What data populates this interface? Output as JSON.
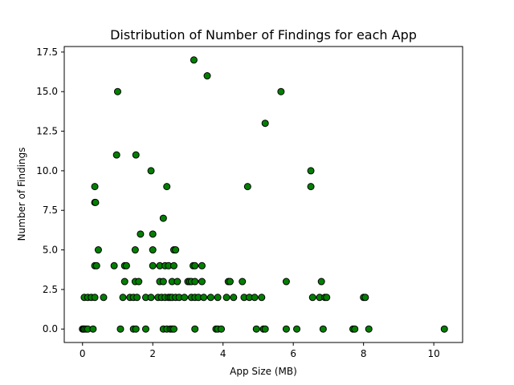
{
  "chart_data": {
    "type": "scatter",
    "title": "Distribution of Number of Findings for each App",
    "xlabel": "App Size (MB)",
    "ylabel": "Number of Findings",
    "xlim": [
      -0.52,
      10.82
    ],
    "ylim": [
      -0.85,
      17.85
    ],
    "xticks": [
      0,
      2,
      4,
      6,
      8,
      10
    ],
    "xtick_labels": [
      "0",
      "2",
      "4",
      "6",
      "8",
      "10"
    ],
    "yticks": [
      0,
      2.5,
      5,
      7.5,
      10,
      12.5,
      15,
      17.5
    ],
    "ytick_labels": [
      "0.0",
      "2.5",
      "5.0",
      "7.5",
      "10.0",
      "12.5",
      "15.0",
      "17.5"
    ],
    "grid": false,
    "marker_color": "#008000",
    "marker_edge_color": "#000000",
    "points": [
      [
        0.0,
        0
      ],
      [
        0.03,
        0
      ],
      [
        0.05,
        0
      ],
      [
        0.1,
        0
      ],
      [
        0.15,
        0
      ],
      [
        0.3,
        0
      ],
      [
        1.08,
        0
      ],
      [
        1.45,
        0
      ],
      [
        1.52,
        0
      ],
      [
        1.8,
        0
      ],
      [
        2.3,
        0
      ],
      [
        2.4,
        0
      ],
      [
        2.5,
        0
      ],
      [
        2.55,
        0
      ],
      [
        2.6,
        0
      ],
      [
        3.2,
        0
      ],
      [
        3.8,
        0
      ],
      [
        3.85,
        0
      ],
      [
        3.95,
        0
      ],
      [
        4.95,
        0
      ],
      [
        5.15,
        0
      ],
      [
        5.2,
        0
      ],
      [
        5.8,
        0
      ],
      [
        6.1,
        0
      ],
      [
        6.85,
        0
      ],
      [
        7.7,
        0
      ],
      [
        7.75,
        0
      ],
      [
        8.15,
        0
      ],
      [
        10.3,
        0
      ],
      [
        0.05,
        2
      ],
      [
        0.15,
        2
      ],
      [
        0.25,
        2
      ],
      [
        0.35,
        2
      ],
      [
        0.6,
        2
      ],
      [
        1.15,
        2
      ],
      [
        1.35,
        2
      ],
      [
        1.45,
        2
      ],
      [
        1.55,
        2
      ],
      [
        1.8,
        2
      ],
      [
        1.95,
        2
      ],
      [
        2.15,
        2
      ],
      [
        2.25,
        2
      ],
      [
        2.35,
        2
      ],
      [
        2.45,
        2
      ],
      [
        2.5,
        2
      ],
      [
        2.55,
        2
      ],
      [
        2.65,
        2
      ],
      [
        2.75,
        2
      ],
      [
        2.9,
        2
      ],
      [
        3.1,
        2
      ],
      [
        3.2,
        2
      ],
      [
        3.3,
        2
      ],
      [
        3.45,
        2
      ],
      [
        3.65,
        2
      ],
      [
        3.85,
        2
      ],
      [
        4.1,
        2
      ],
      [
        4.3,
        2
      ],
      [
        4.6,
        2
      ],
      [
        4.75,
        2
      ],
      [
        4.9,
        2
      ],
      [
        5.1,
        2
      ],
      [
        6.55,
        2
      ],
      [
        6.75,
        2
      ],
      [
        6.9,
        2
      ],
      [
        6.95,
        2
      ],
      [
        8.0,
        2
      ],
      [
        8.05,
        2
      ],
      [
        1.2,
        3
      ],
      [
        1.5,
        3
      ],
      [
        1.6,
        3
      ],
      [
        2.2,
        3
      ],
      [
        2.3,
        3
      ],
      [
        2.55,
        3
      ],
      [
        2.7,
        3
      ],
      [
        3.0,
        3
      ],
      [
        3.05,
        3
      ],
      [
        3.1,
        3
      ],
      [
        3.2,
        3
      ],
      [
        3.4,
        3
      ],
      [
        4.15,
        3
      ],
      [
        4.2,
        3
      ],
      [
        4.55,
        3
      ],
      [
        5.8,
        3
      ],
      [
        6.8,
        3
      ],
      [
        0.35,
        4
      ],
      [
        0.4,
        4
      ],
      [
        0.9,
        4
      ],
      [
        1.2,
        4
      ],
      [
        1.25,
        4
      ],
      [
        2.0,
        4
      ],
      [
        2.2,
        4
      ],
      [
        2.35,
        4
      ],
      [
        2.45,
        4
      ],
      [
        2.6,
        4
      ],
      [
        3.15,
        4
      ],
      [
        3.2,
        4
      ],
      [
        3.4,
        4
      ],
      [
        0.45,
        5
      ],
      [
        1.5,
        5
      ],
      [
        2.0,
        5
      ],
      [
        2.6,
        5
      ],
      [
        2.65,
        5
      ],
      [
        1.65,
        6
      ],
      [
        2.0,
        6
      ],
      [
        2.3,
        7
      ],
      [
        0.35,
        8
      ],
      [
        0.37,
        8
      ],
      [
        0.35,
        9
      ],
      [
        2.4,
        9
      ],
      [
        4.7,
        9
      ],
      [
        6.5,
        9
      ],
      [
        1.95,
        10
      ],
      [
        6.5,
        10
      ],
      [
        0.97,
        11
      ],
      [
        1.52,
        11
      ],
      [
        5.2,
        13
      ],
      [
        1.0,
        15
      ],
      [
        5.65,
        15
      ],
      [
        3.55,
        16
      ],
      [
        3.17,
        17
      ]
    ]
  }
}
